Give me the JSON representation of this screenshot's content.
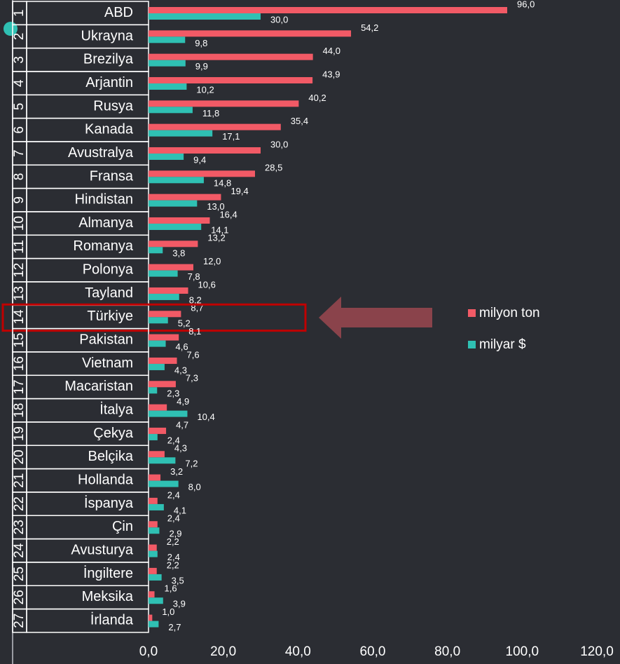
{
  "chart_data": {
    "type": "hbar",
    "ranks": [
      1,
      2,
      3,
      4,
      5,
      6,
      7,
      8,
      9,
      10,
      11,
      12,
      13,
      14,
      15,
      16,
      17,
      18,
      19,
      20,
      21,
      22,
      23,
      24,
      25,
      26,
      27
    ],
    "categories": [
      "ABD",
      "Ukrayna",
      "Brezilya",
      "Arjantin",
      "Rusya",
      "Kanada",
      "Avustralya",
      "Fransa",
      "Hindistan",
      "Almanya",
      "Romanya",
      "Polonya",
      "Tayland",
      "Türkiye",
      "Pakistan",
      "Vietnam",
      "Macaristan",
      "İtalya",
      "Çekya",
      "Belçika",
      "Hollanda",
      "İspanya",
      "Çin",
      "Avusturya",
      "İngiltere",
      "Meksika",
      "İrlanda"
    ],
    "series": [
      {
        "name": "milyon ton",
        "color": "#f25a66",
        "values": [
          96.0,
          54.2,
          44.0,
          43.9,
          40.2,
          35.4,
          30.0,
          28.5,
          19.4,
          16.4,
          13.2,
          12.0,
          10.6,
          8.7,
          8.1,
          7.6,
          7.3,
          4.9,
          4.7,
          4.3,
          3.2,
          2.4,
          2.4,
          2.2,
          2.2,
          1.6,
          1.0
        ],
        "value_labels": [
          "96,0",
          "54,2",
          "44,0",
          "43,9",
          "40,2",
          "35,4",
          "30,0",
          "28,5",
          "19,4",
          "16,4",
          "13,2",
          "12,0",
          "10,6",
          "8,7",
          "8,1",
          "7,6",
          "7,3",
          "4,9",
          "4,7",
          "4,3",
          "3,2",
          "2,4",
          "2,4",
          "2,2",
          "2,2",
          "1,6",
          "1,0"
        ]
      },
      {
        "name": "milyar $",
        "color": "#2fc0b3",
        "values": [
          30.0,
          9.8,
          9.9,
          10.2,
          11.8,
          17.1,
          9.4,
          14.8,
          13.0,
          14.1,
          3.8,
          7.8,
          8.2,
          5.2,
          4.6,
          4.3,
          2.3,
          10.4,
          2.4,
          7.2,
          8.0,
          4.1,
          2.9,
          2.4,
          3.5,
          3.9,
          2.7
        ],
        "value_labels": [
          "30,0",
          "9,8",
          "9,9",
          "10,2",
          "11,8",
          "17,1",
          "9,4",
          "14,8",
          "13,0",
          "14,1",
          "3,8",
          "7,8",
          "8,2",
          "5,2",
          "4,6",
          "4,3",
          "2,3",
          "10,4",
          "2,4",
          "7,2",
          "8,0",
          "4,1",
          "2,9",
          "2,4",
          "3,5",
          "3,9",
          "2,7"
        ]
      }
    ],
    "xlim": [
      0,
      120
    ],
    "xticks": [
      {
        "value": 0,
        "label": "0,0"
      },
      {
        "value": 20,
        "label": "20,0"
      },
      {
        "value": 40,
        "label": "40,0"
      },
      {
        "value": 60,
        "label": "60,0"
      },
      {
        "value": 80,
        "label": "80,0"
      },
      {
        "value": 100,
        "label": "100,0"
      },
      {
        "value": 120,
        "label": "120,0"
      }
    ],
    "highlight": "Türkiye"
  }
}
